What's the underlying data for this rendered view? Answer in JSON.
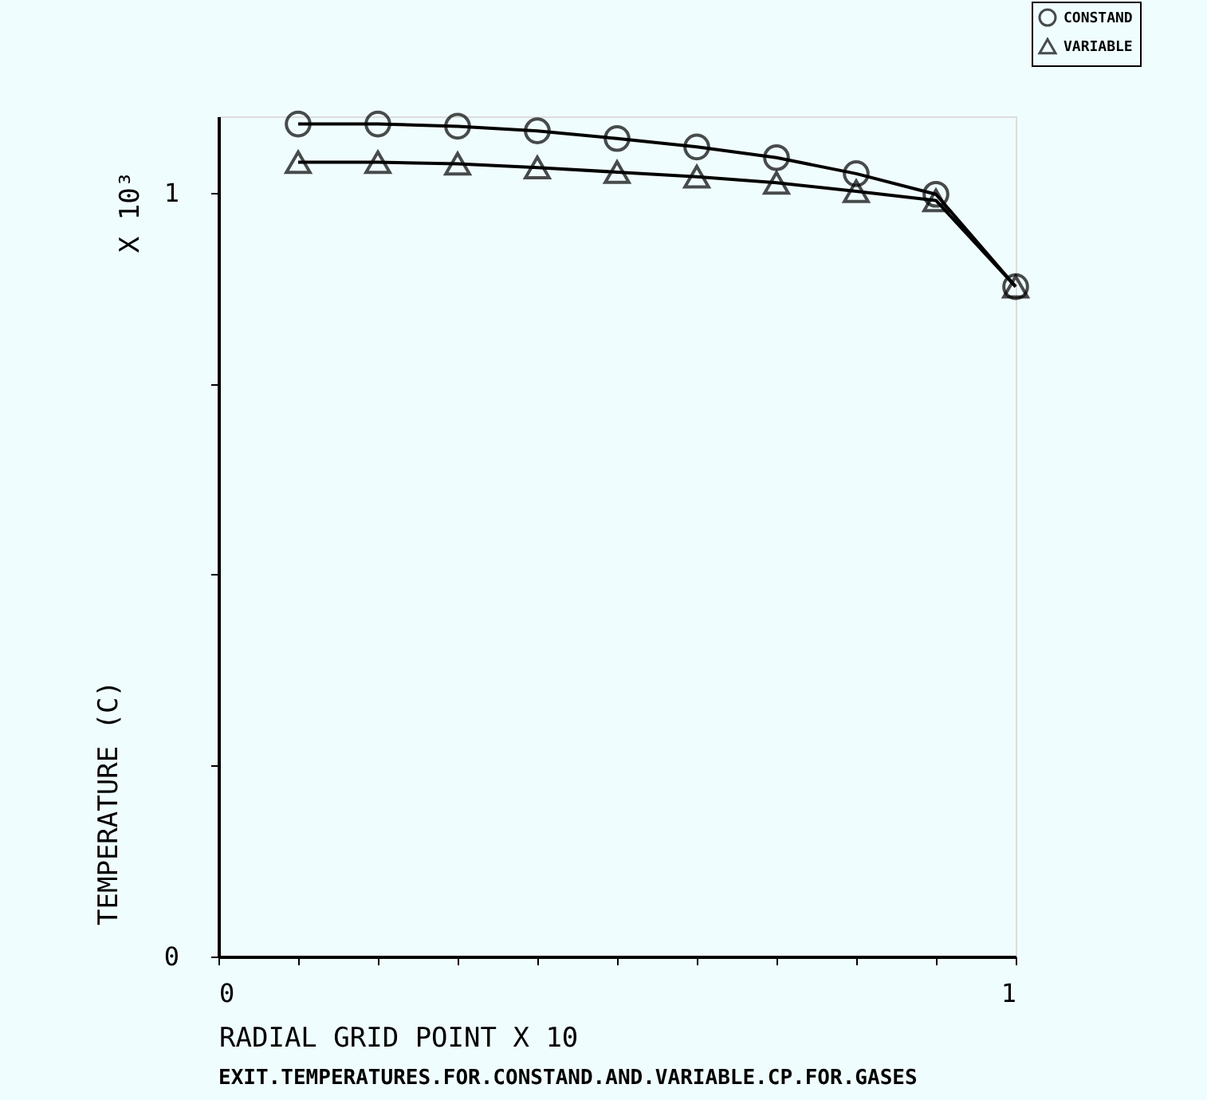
{
  "chart_data": {
    "type": "line",
    "xlabel": "RADIAL GRID POINT    X 10",
    "ylabel": "TEMPERATURE (C)",
    "annotations": [
      "X 10³",
      "EXIT.TEMPERATURES.FOR.CONSTAND.AND.VARIABLE.CP.FOR.GASES"
    ],
    "x": [
      0.1,
      0.2,
      0.3,
      0.4,
      0.5,
      0.6,
      0.7,
      0.8,
      0.9,
      1.0
    ],
    "series": [
      {
        "name": "CONSTAND",
        "color": "#000000",
        "marker": "circle",
        "values": [
          1.09,
          1.09,
          1.087,
          1.081,
          1.071,
          1.06,
          1.046,
          1.025,
          0.998,
          0.877
        ]
      },
      {
        "name": "VARIABLE",
        "color": "#000000",
        "marker": "triangle",
        "values": [
          1.04,
          1.04,
          1.038,
          1.033,
          1.027,
          1.021,
          1.013,
          1.002,
          0.99,
          0.877
        ]
      }
    ],
    "xlim": [
      0,
      1
    ],
    "ylim": [
      0,
      1.1
    ],
    "xticks": [
      0,
      {
        "value": 0.1,
        "label": null
      },
      {
        "value": 0.2,
        "label": null
      },
      {
        "value": 0.3,
        "label": null
      },
      {
        "value": 0.4,
        "label": null
      },
      {
        "value": 0.5,
        "label": null
      },
      {
        "value": 0.6,
        "label": null
      },
      {
        "value": 0.7,
        "label": null
      },
      {
        "value": 0.8,
        "label": null
      },
      {
        "value": 0.9,
        "label": null
      },
      1
    ],
    "yticks": [
      0,
      {
        "value": 0.25,
        "label": null
      },
      {
        "value": 0.5,
        "label": null
      },
      {
        "value": 0.75,
        "label": null
      },
      1
    ],
    "grid": false,
    "legend": "top right",
    "line_style": "solid"
  }
}
